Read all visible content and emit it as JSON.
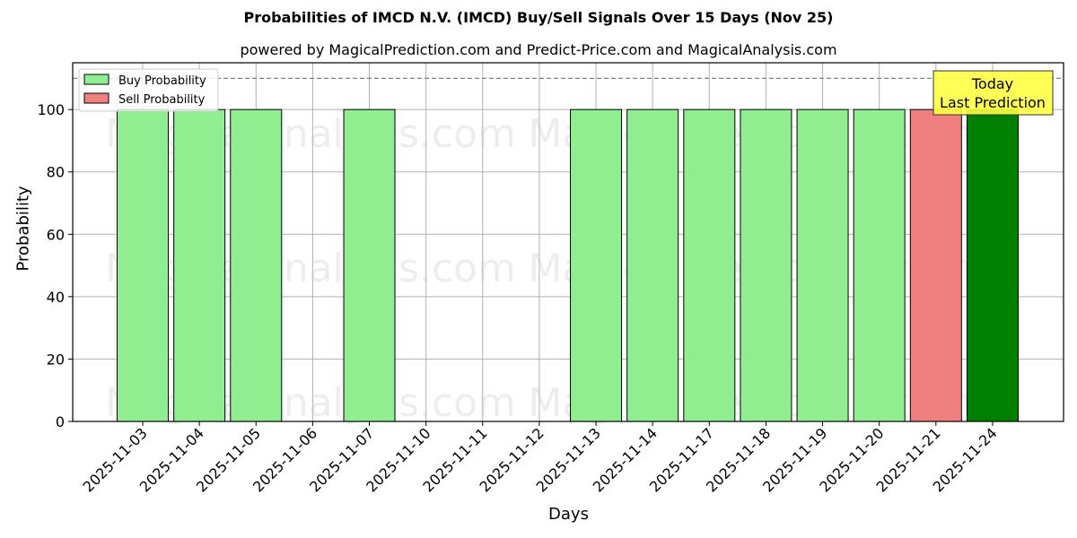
{
  "header": {
    "title": "Probabilities of IMCD N.V. (IMCD) Buy/Sell Signals Over 15 Days (Nov 25)",
    "subtitle": "powered by MagicalPrediction.com and Predict-Price.com and MagicalAnalysis.com"
  },
  "legend": {
    "buy_label": "Buy Probability",
    "sell_label": "Sell Probability"
  },
  "annotation": {
    "line1": "Today",
    "line2": "Last Prediction"
  },
  "watermarks": [
    "MagicalAnalysis.com",
    "MagicalPrediction.com"
  ],
  "colors": {
    "buy": "#90ee90",
    "sell": "#f08080",
    "today": "#008000",
    "annotation_bg": "#ffff44",
    "grid": "#b0b0b0"
  },
  "chart_data": {
    "type": "bar",
    "title": "Probabilities of IMCD N.V. (IMCD) Buy/Sell Signals Over 15 Days (Nov 25)",
    "subtitle": "powered by MagicalPrediction.com and Predict-Price.com and MagicalAnalysis.com",
    "xlabel": "Days",
    "ylabel": "Probability",
    "ylim": [
      0,
      115
    ],
    "yticks": [
      0,
      20,
      40,
      60,
      80,
      100
    ],
    "grid": true,
    "legend_position": "upper left",
    "reference_line": {
      "y": 110,
      "style": "dashed"
    },
    "categories": [
      "2025-11-03",
      "2025-11-04",
      "2025-11-05",
      "2025-11-06",
      "2025-11-07",
      "2025-11-10",
      "2025-11-11",
      "2025-11-12",
      "2025-11-13",
      "2025-11-14",
      "2025-11-17",
      "2025-11-18",
      "2025-11-19",
      "2025-11-20",
      "2025-11-21",
      "2025-11-24"
    ],
    "series": [
      {
        "name": "Buy Probability",
        "values": [
          100,
          100,
          100,
          0,
          100,
          0,
          0,
          0,
          100,
          100,
          100,
          100,
          100,
          100,
          0,
          100
        ]
      },
      {
        "name": "Sell Probability",
        "values": [
          0,
          0,
          0,
          0,
          0,
          0,
          0,
          0,
          0,
          0,
          0,
          0,
          0,
          0,
          100,
          0
        ]
      }
    ],
    "highlight": {
      "category": "2025-11-24",
      "label": "Today Last Prediction",
      "color": "#008000"
    }
  }
}
